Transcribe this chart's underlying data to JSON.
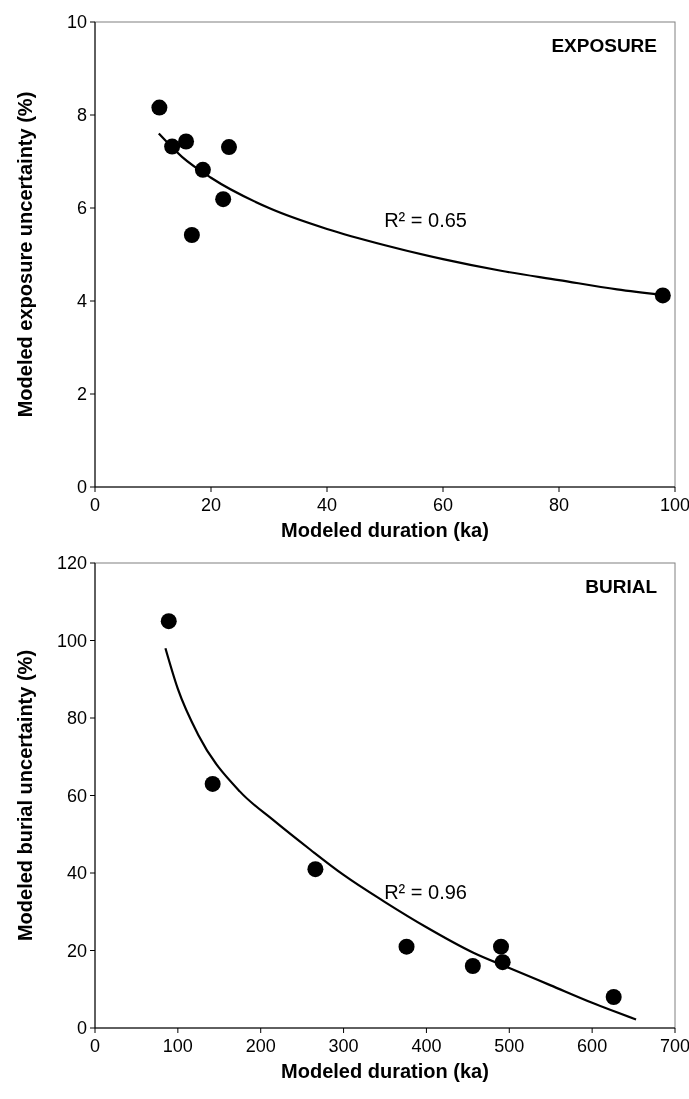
{
  "chart_data": [
    {
      "type": "scatter",
      "title": "EXPOSURE",
      "xlabel": "Modeled duration (ka)",
      "ylabel": "Modeled exposure uncertainty (%)",
      "xlim": [
        0,
        100
      ],
      "xticks": [
        0,
        20,
        40,
        60,
        80,
        100
      ],
      "ylim": [
        0,
        10
      ],
      "yticks": [
        0,
        2,
        4,
        6,
        8,
        10
      ],
      "annotations": [
        "R² = 0.65"
      ],
      "series": [
        {
          "color": "#000000",
          "marker": "circle",
          "x": [
            11.1,
            13.3,
            15.7,
            18.6,
            23.1,
            22.1,
            16.7,
            97.9
          ],
          "values": [
            8.16,
            7.32,
            7.43,
            6.82,
            7.31,
            6.19,
            5.42,
            4.12
          ]
        },
        {
          "type": "line",
          "color": "#000000",
          "line_style": "solid",
          "x": [
            11,
            15,
            20,
            30,
            40,
            50,
            60,
            70,
            80,
            90,
            98
          ],
          "values": [
            7.6,
            7.1,
            6.65,
            6.0,
            5.55,
            5.2,
            4.9,
            4.65,
            4.45,
            4.25,
            4.13
          ]
        }
      ]
    },
    {
      "type": "scatter",
      "title": "BURIAL",
      "xlabel": "Modeled duration (ka)",
      "ylabel": "Modeled burial uncertainty (%)",
      "xlim": [
        0,
        700
      ],
      "xticks": [
        0,
        100,
        200,
        300,
        400,
        500,
        600,
        700
      ],
      "ylim": [
        0,
        120
      ],
      "yticks": [
        0,
        20,
        40,
        60,
        80,
        100,
        120
      ],
      "annotations": [
        "R² = 0.96"
      ],
      "series": [
        {
          "color": "#000000",
          "marker": "circle",
          "x": [
            89,
            142,
            266,
            376,
            456,
            490,
            492,
            626
          ],
          "values": [
            105,
            63,
            41,
            21,
            16,
            21,
            17,
            8
          ]
        },
        {
          "type": "line",
          "color": "#000000",
          "line_style": "solid",
          "x": [
            85,
            100,
            125,
            175,
            216,
            260,
            300,
            350,
            400,
            456,
            500,
            550,
            600,
            653
          ],
          "values": [
            98,
            87.5,
            75.5,
            61,
            53.5,
            46,
            39.5,
            32.5,
            26,
            19.5,
            15.5,
            11,
            6.5,
            2.2
          ]
        }
      ]
    }
  ]
}
